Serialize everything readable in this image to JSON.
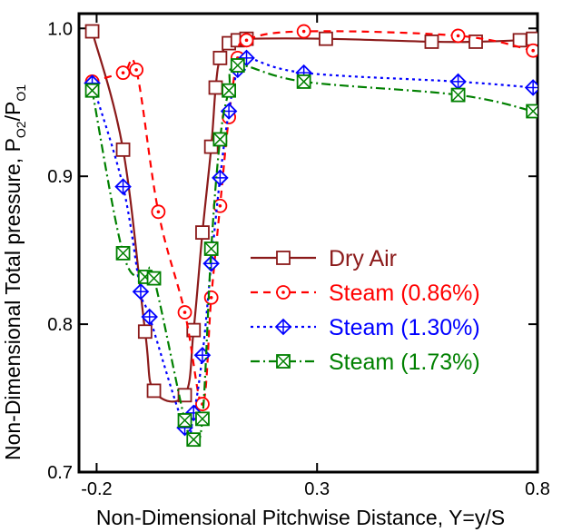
{
  "chart_data": {
    "type": "line",
    "xlabel": "Non-Dimensional Pitchwise Distance, Y=y/S",
    "ylabel": {
      "main": "Non-Dimensional Total pressure, P",
      "sub1": "O2",
      "sep": "/P",
      "sub2": "O1"
    },
    "xlim": [
      -0.24,
      0.8
    ],
    "ylim": [
      0.7,
      1.01
    ],
    "xticks": [
      -0.2,
      0.3,
      0.8
    ],
    "xtick_labels": [
      "-0.2",
      "0.3",
      "0.8"
    ],
    "yticks": [
      0.7,
      0.8,
      0.9,
      1.0
    ],
    "ytick_labels": [
      "0.7",
      "0.8",
      "0.9",
      "1.0"
    ],
    "grid": false,
    "legend_position": "right-middle",
    "series": [
      {
        "name": "Dry Air",
        "color": "#8b1a1a",
        "dash": "",
        "marker": "square",
        "x": [
          -0.21,
          -0.14,
          -0.09,
          -0.07,
          0.0,
          0.02,
          0.04,
          0.06,
          0.07,
          0.08,
          0.1,
          0.12,
          0.14,
          0.32,
          0.56,
          0.66,
          0.76,
          0.79
        ],
        "y": [
          0.998,
          0.918,
          0.795,
          0.755,
          0.752,
          0.796,
          0.862,
          0.92,
          0.96,
          0.98,
          0.99,
          0.992,
          0.993,
          0.993,
          0.991,
          0.991,
          0.992,
          0.993
        ]
      },
      {
        "name": "Steam (0.86%)",
        "color": "#ff0000",
        "dash": "8,6",
        "marker": "circle-dot",
        "x": [
          -0.21,
          -0.14,
          -0.11,
          -0.06,
          0.0,
          0.04,
          0.06,
          0.08,
          0.1,
          0.12,
          0.14,
          0.27,
          0.62,
          0.79
        ],
        "y": [
          0.964,
          0.97,
          0.972,
          0.876,
          0.808,
          0.746,
          0.818,
          0.88,
          0.94,
          0.98,
          0.992,
          0.998,
          0.995,
          0.985
        ]
      },
      {
        "name": "Steam (1.30%)",
        "color": "#0000ff",
        "dash": "3,4",
        "marker": "diamond-plus",
        "x": [
          -0.21,
          -0.14,
          -0.1,
          -0.08,
          0.0,
          0.02,
          0.04,
          0.06,
          0.08,
          0.1,
          0.12,
          0.14,
          0.27,
          0.62,
          0.79
        ],
        "y": [
          0.963,
          0.893,
          0.822,
          0.805,
          0.73,
          0.74,
          0.779,
          0.841,
          0.899,
          0.944,
          0.972,
          0.98,
          0.97,
          0.964,
          0.96
        ]
      },
      {
        "name": "Steam (1.73%)",
        "color": "#008000",
        "dash": "10,4,2,4",
        "marker": "square-x",
        "x": [
          -0.21,
          -0.14,
          -0.09,
          -0.07,
          0.0,
          0.02,
          0.04,
          0.06,
          0.08,
          0.1,
          0.12,
          0.27,
          0.62,
          0.79
        ],
        "y": [
          0.958,
          0.848,
          0.832,
          0.831,
          0.735,
          0.722,
          0.736,
          0.851,
          0.925,
          0.958,
          0.975,
          0.964,
          0.955,
          0.944
        ]
      }
    ]
  }
}
